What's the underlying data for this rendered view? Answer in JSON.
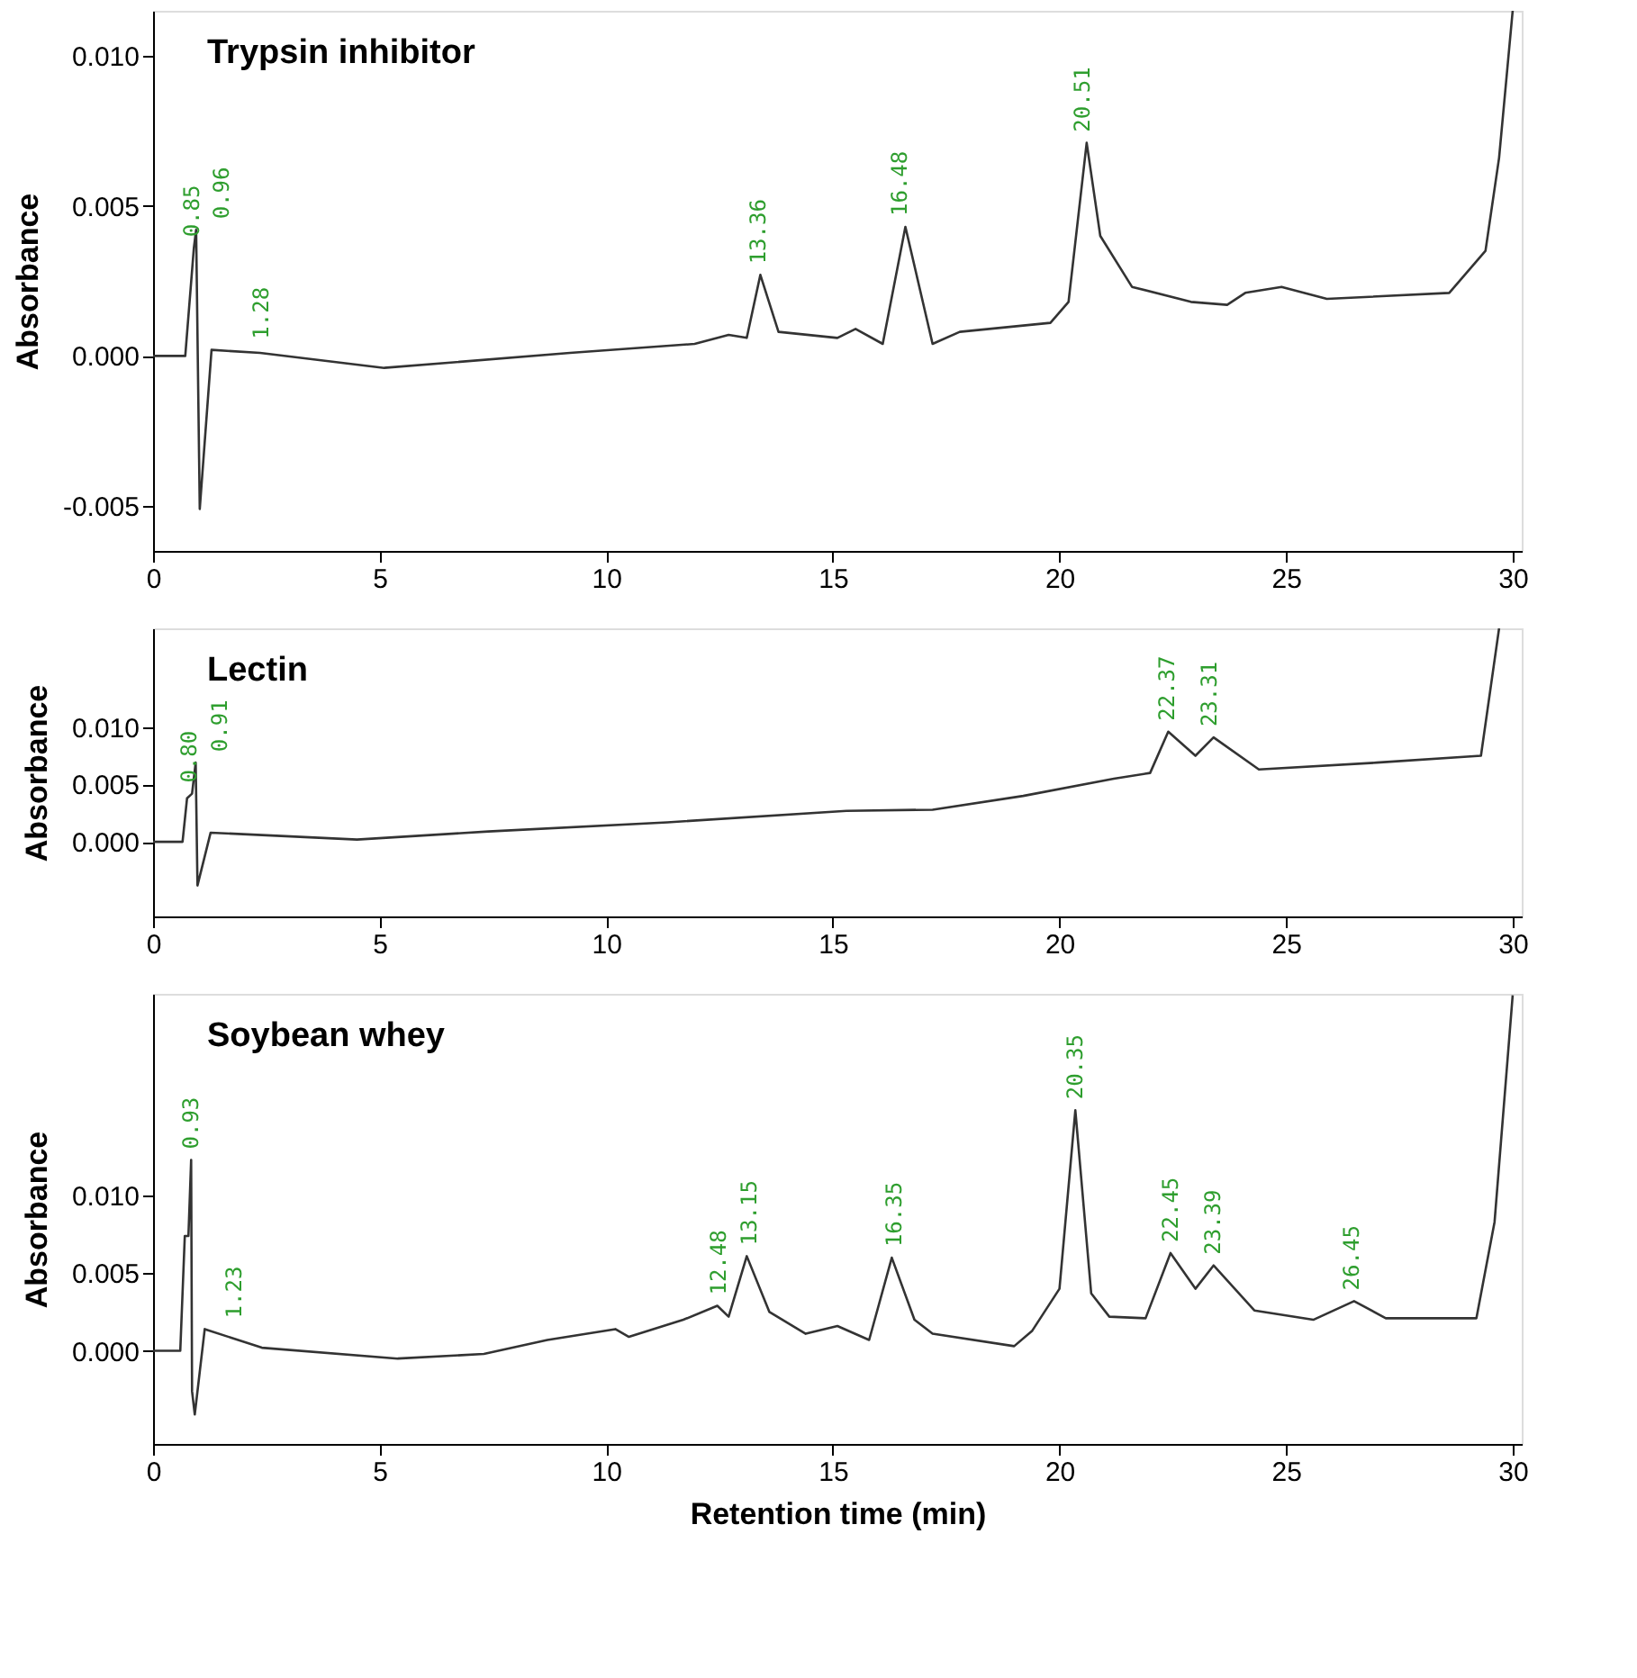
{
  "chart_data": [
    {
      "type": "line",
      "title": "Trypsin inhibitor",
      "ylabel": "Absorbance",
      "grid": false,
      "xlim": [
        0,
        30.2
      ],
      "xticks": [
        0,
        5,
        10,
        15,
        20,
        25,
        30
      ],
      "ylim": [
        -0.0065,
        0.0115
      ],
      "yticks": [
        {
          "value": -0.005,
          "label": "-0.005"
        },
        {
          "value": 0,
          "label": "0.000"
        },
        {
          "value": 0.005,
          "label": "0.005"
        },
        {
          "value": 0.01,
          "label": "0.010"
        }
      ],
      "series": [
        {
          "color": "#333333",
          "line_style": "solid",
          "x": [
            0,
            0.71,
            0.9,
            0.95,
            1.03,
            1.29,
            2.36,
            5.1,
            9.2,
            11.95,
            12.7,
            13.1,
            13.4,
            13.8,
            15.1,
            15.5,
            16.1,
            16.6,
            17.2,
            17.8,
            19.8,
            20.2,
            20.6,
            20.9,
            21.6,
            22.9,
            23.7,
            24.1,
            24.9,
            25.9,
            28.6,
            29.4,
            29.7,
            30.0
          ],
          "values": [
            0,
            0,
            0.0036,
            0.0042,
            -0.0051,
            0.0002,
            0.0001,
            -0.0004,
            0.0001,
            0.0004,
            0.0007,
            0.0006,
            0.0027,
            0.0008,
            0.0006,
            0.0009,
            0.0004,
            0.0043,
            0.0004,
            0.0008,
            0.0011,
            0.0018,
            0.0071,
            0.004,
            0.0023,
            0.0018,
            0.0017,
            0.0021,
            0.0023,
            0.0019,
            0.0021,
            0.0035,
            0.0066,
            0.0115
          ]
        }
      ],
      "annotations": [
        {
          "text": "0.85",
          "x": 0.85,
          "y": 0.0036
        },
        {
          "text": "0.96",
          "x": 0.96,
          "y": 0.0042
        },
        {
          "text": "1.28",
          "x": 1.28,
          "y": 0.0002
        },
        {
          "text": "13.36",
          "x": 13.36,
          "y": 0.0027
        },
        {
          "text": "16.48",
          "x": 16.48,
          "y": 0.0043
        },
        {
          "text": "20.51",
          "x": 20.51,
          "y": 0.0071
        }
      ]
    },
    {
      "type": "line",
      "title": "Lectin",
      "ylabel": "Absorbance",
      "grid": false,
      "xlim": [
        0,
        30.2
      ],
      "xticks": [
        0,
        5,
        10,
        15,
        20,
        25,
        30
      ],
      "ylim": [
        -0.0065,
        0.0186
      ],
      "yticks": [
        {
          "value": 0,
          "label": "0.000"
        },
        {
          "value": 0.005,
          "label": "0.005"
        },
        {
          "value": 0.01,
          "label": "0.010"
        }
      ],
      "series": [
        {
          "color": "#333333",
          "line_style": "solid",
          "x": [
            0,
            0.65,
            0.75,
            0.86,
            0.94,
            0.98,
            1.27,
            4.5,
            7.4,
            11.35,
            15.3,
            17.2,
            19.2,
            21.2,
            22.0,
            22.4,
            23.0,
            23.4,
            24.4,
            27.0,
            29.3,
            29.7
          ],
          "values": [
            0,
            0,
            0.0038,
            0.0042,
            0.0069,
            -0.0038,
            0.0008,
            0.0002,
            0.0009,
            0.0017,
            0.0027,
            0.0028,
            0.004,
            0.0055,
            0.006,
            0.0096,
            0.0075,
            0.0091,
            0.0063,
            0.0069,
            0.0075,
            0.0186
          ]
        }
      ],
      "annotations": [
        {
          "text": "0.80",
          "x": 0.8,
          "y": 0.0042
        },
        {
          "text": "0.91",
          "x": 0.91,
          "y": 0.0069
        },
        {
          "text": "22.37",
          "x": 22.37,
          "y": 0.0096
        },
        {
          "text": "23.31",
          "x": 23.31,
          "y": 0.0091
        }
      ]
    },
    {
      "type": "line",
      "title": "Soybean whey",
      "ylabel": "Absorbance",
      "xlabel": "Retention time (min)",
      "grid": false,
      "xlim": [
        0,
        30.2
      ],
      "xticks": [
        0,
        5,
        10,
        15,
        20,
        25,
        30
      ],
      "ylim": [
        -0.006,
        0.023
      ],
      "yticks": [
        {
          "value": 0,
          "label": "0.000"
        },
        {
          "value": 0.005,
          "label": "0.005"
        },
        {
          "value": 0.01,
          "label": "0.010"
        }
      ],
      "series": [
        {
          "color": "#333333",
          "line_style": "solid",
          "x": [
            0,
            0.6,
            0.7,
            0.78,
            0.84,
            0.86,
            0.92,
            1.14,
            2.4,
            5.4,
            7.3,
            8.7,
            10.2,
            10.5,
            11.7,
            12.45,
            12.7,
            13.1,
            13.6,
            14.4,
            15.1,
            15.8,
            16.3,
            16.8,
            17.2,
            19.0,
            19.4,
            20.0,
            20.35,
            20.7,
            21.1,
            21.9,
            22.45,
            23.0,
            23.4,
            24.3,
            25.6,
            26.5,
            27.2,
            29.2,
            29.6,
            30.0
          ],
          "values": [
            0,
            0,
            0.0074,
            0.0074,
            0.0123,
            -0.0026,
            -0.0041,
            0.0014,
            0.0002,
            -0.0005,
            -0.0002,
            0.0007,
            0.0014,
            0.0009,
            0.002,
            0.0029,
            0.0022,
            0.0061,
            0.0025,
            0.0011,
            0.0016,
            0.0007,
            0.006,
            0.002,
            0.0011,
            0.0003,
            0.0013,
            0.004,
            0.0155,
            0.0037,
            0.0022,
            0.0021,
            0.0063,
            0.004,
            0.0055,
            0.0026,
            0.002,
            0.0032,
            0.0021,
            0.0021,
            0.0083,
            0.0229
          ]
        }
      ],
      "annotations": [
        {
          "text": "0.93",
          "x": 0.84,
          "y": 0.0123
        },
        {
          "text": "1.23",
          "x": 1.23,
          "y": 0.0014
        },
        {
          "text": "12.48",
          "x": 12.48,
          "y": 0.0029
        },
        {
          "text": "13.15",
          "x": 13.15,
          "y": 0.0061
        },
        {
          "text": "16.35",
          "x": 16.35,
          "y": 0.006
        },
        {
          "text": "20.35",
          "x": 20.35,
          "y": 0.0155
        },
        {
          "text": "22.45",
          "x": 22.45,
          "y": 0.0063
        },
        {
          "text": "23.39",
          "x": 23.39,
          "y": 0.0055
        },
        {
          "text": "26.45",
          "x": 26.45,
          "y": 0.0032
        }
      ]
    }
  ]
}
